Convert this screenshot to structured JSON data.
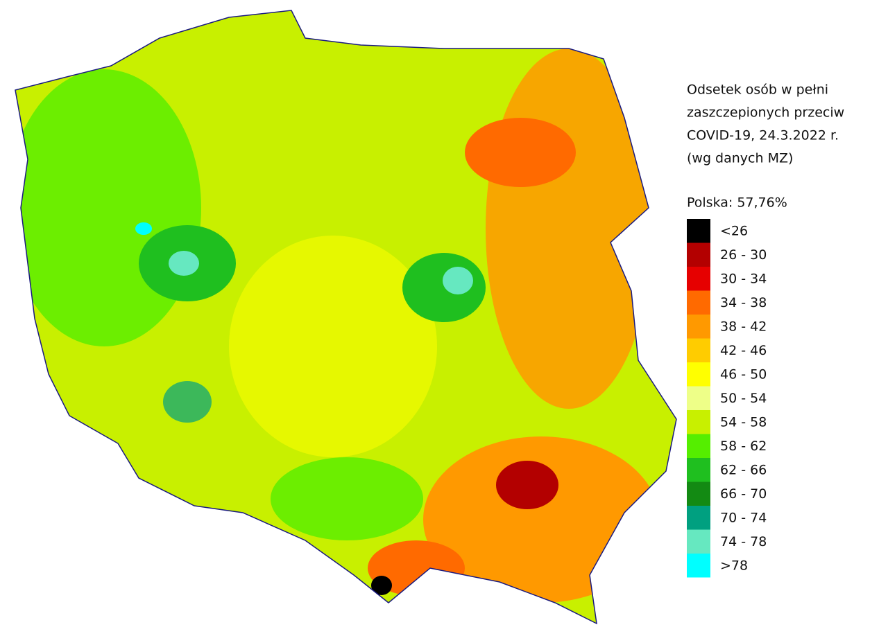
{
  "title": [
    "Odsetek osób w pełni",
    "zaszczepionych przeciw",
    "COVID-19, 24.3.2022 r.",
    "(wg danych MZ)"
  ],
  "national": "Polska: 57,76%",
  "legend": [
    {
      "label": "<26",
      "color": "#000000"
    },
    {
      "label": "26 - 30",
      "color": "#b30000"
    },
    {
      "label": "30 - 34",
      "color": "#e60000"
    },
    {
      "label": "34 - 38",
      "color": "#ff6a00"
    },
    {
      "label": "38 - 42",
      "color": "#ff9900"
    },
    {
      "label": "42 - 46",
      "color": "#ffcc00"
    },
    {
      "label": "46 - 50",
      "color": "#ffff00"
    },
    {
      "label": "50 - 54",
      "color": "#eeff88"
    },
    {
      "label": "54 - 58",
      "color": "#c8f000"
    },
    {
      "label": "58 - 62",
      "color": "#55ee00"
    },
    {
      "label": "62 - 66",
      "color": "#1fbf1f"
    },
    {
      "label": "66 - 70",
      "color": "#138a13"
    },
    {
      "label": "70 - 74",
      "color": "#00a080"
    },
    {
      "label": "74 - 78",
      "color": "#66e8c0"
    },
    {
      "label": ">78",
      "color": "#00ffff"
    }
  ]
}
